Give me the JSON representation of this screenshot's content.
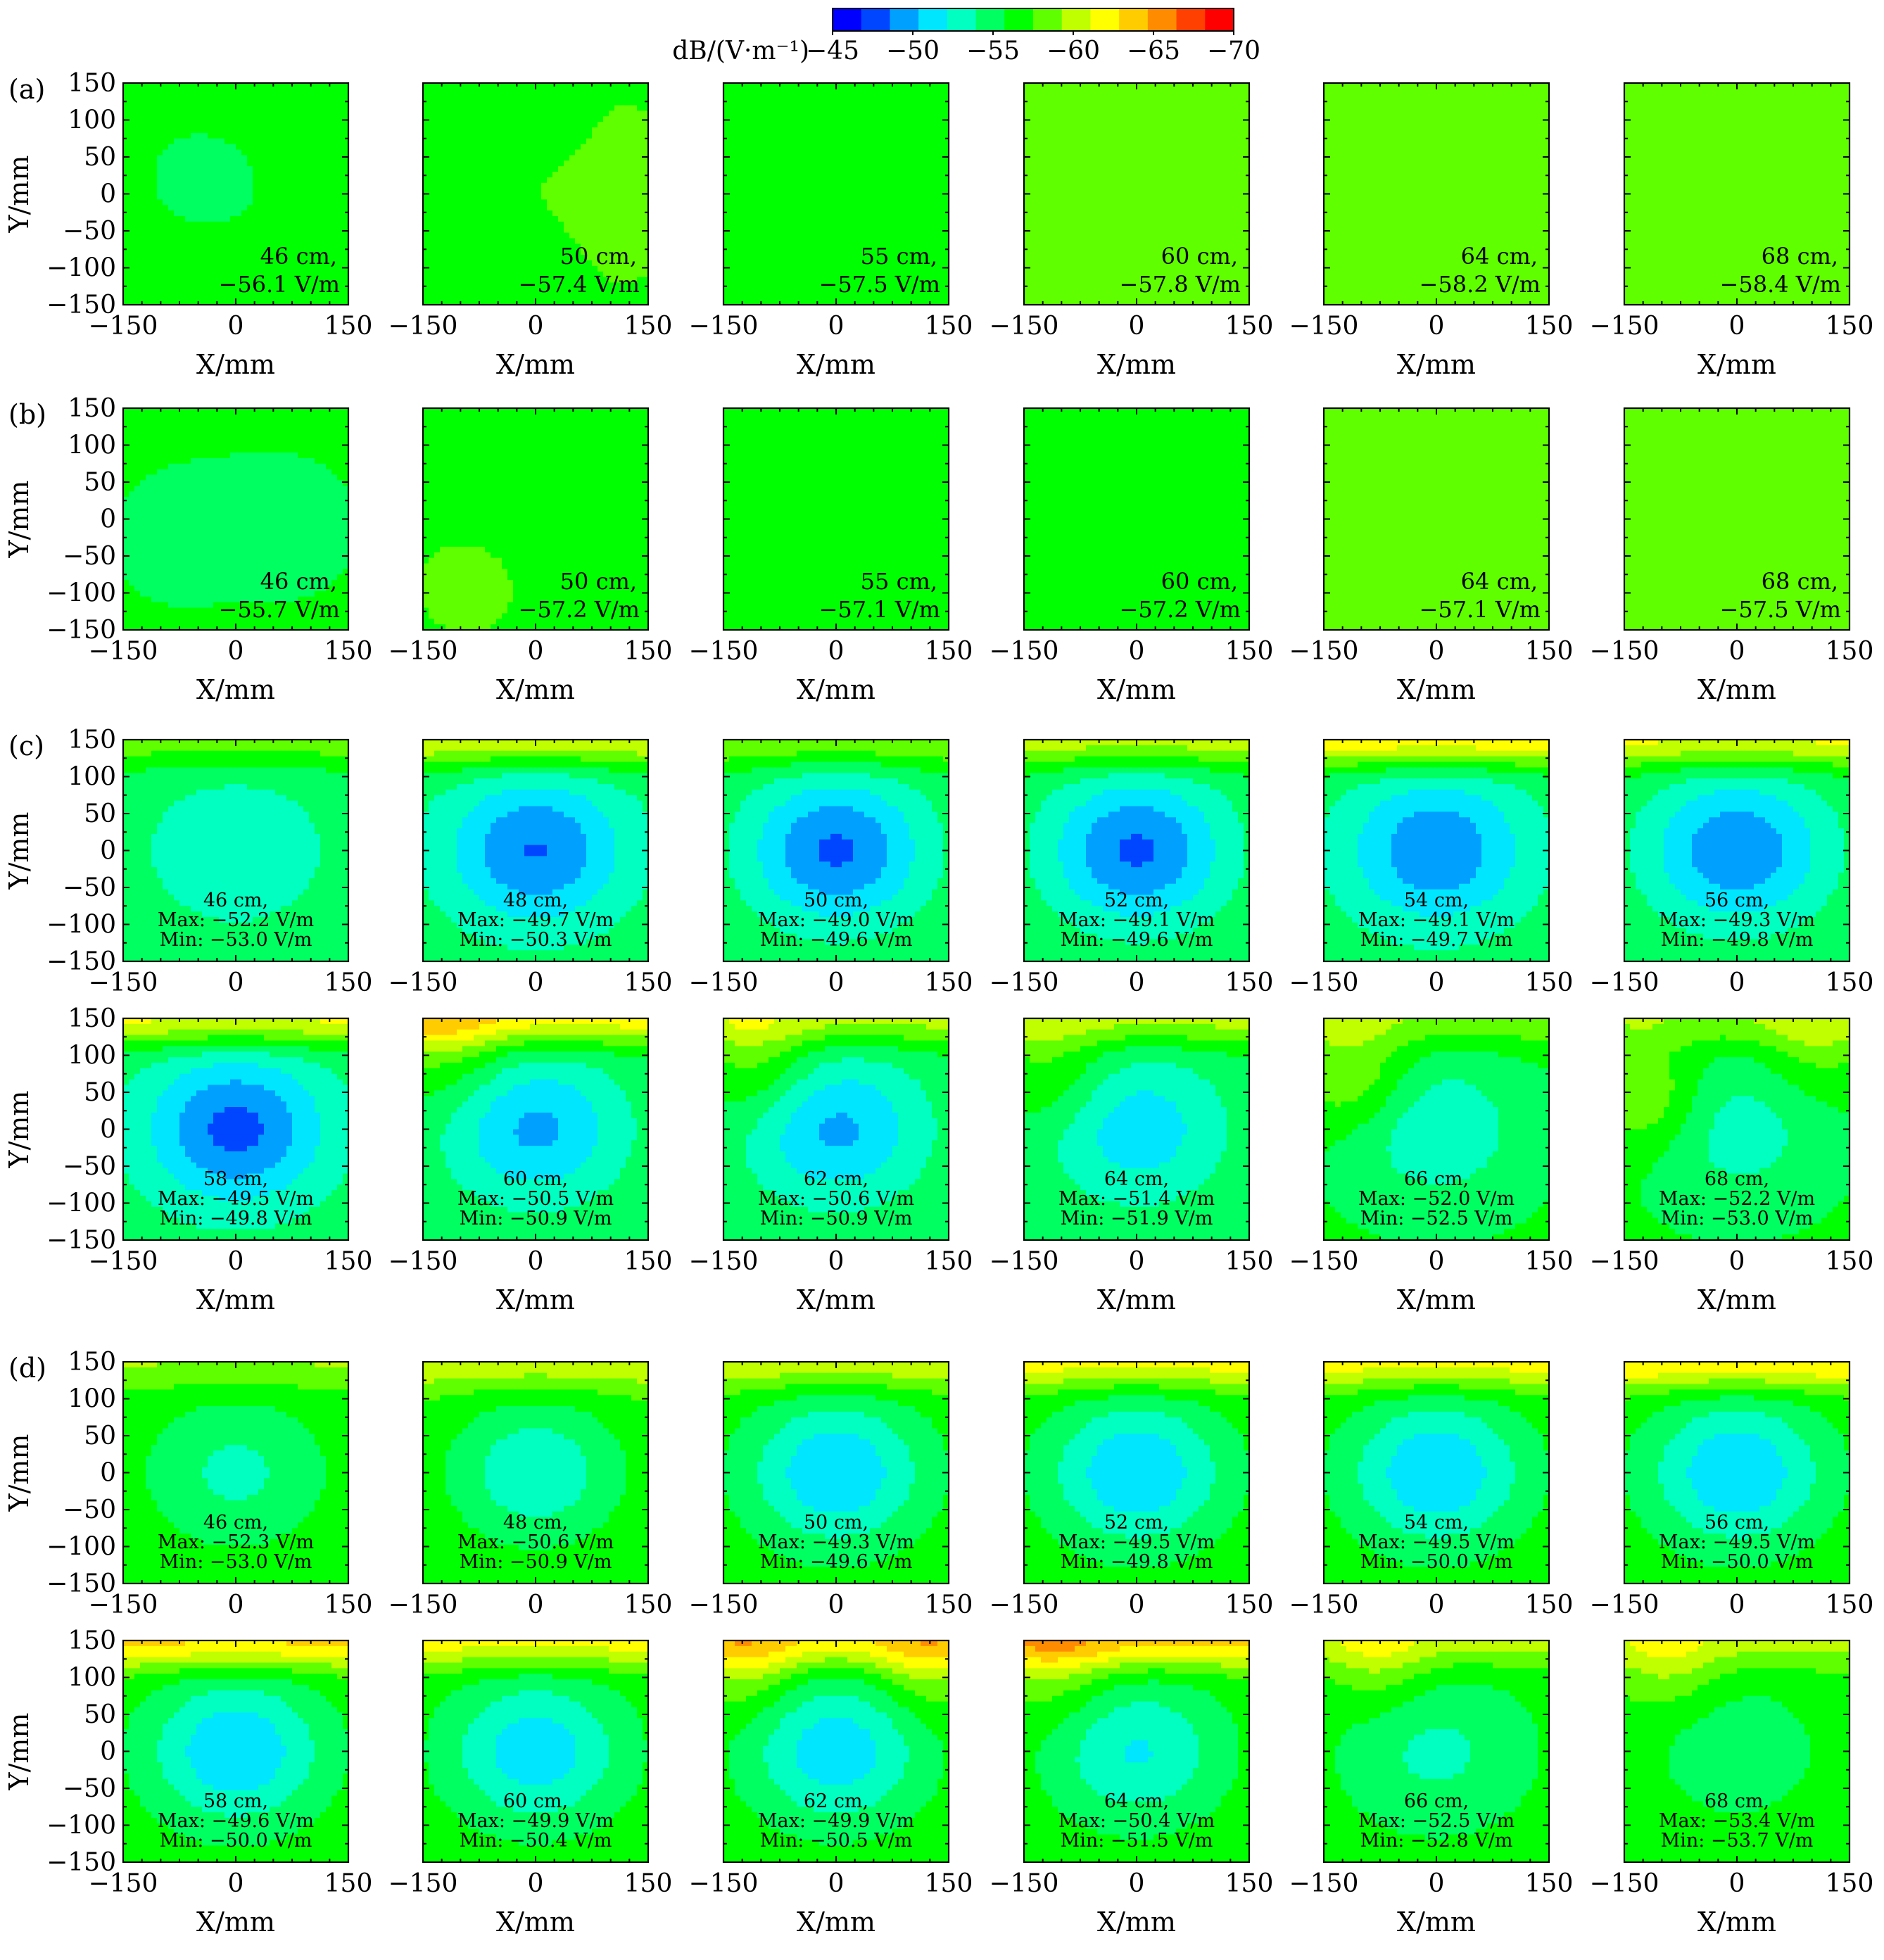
{
  "colorbar": {
    "unit_label": "dB/(V·m⁻¹)",
    "ticks": [
      "−45",
      "−50",
      "−55",
      "−60",
      "−65",
      "−70"
    ],
    "tick_values": [
      -45,
      -50,
      -55,
      -60,
      -65,
      -70
    ],
    "range": [
      -70,
      -45
    ],
    "colors": [
      "#0000ff",
      "#0045ff",
      "#00a0ff",
      "#00e6ff",
      "#00ffc0",
      "#00ff60",
      "#00ff00",
      "#60ff00",
      "#c0ff00",
      "#ffff00",
      "#ffcc00",
      "#ff8c00",
      "#ff4000",
      "#ff0000"
    ]
  },
  "axes": {
    "x_label": "X/mm",
    "y_label": "Y/mm",
    "x_ticks": [
      "−150",
      "0",
      "150"
    ],
    "y_ticks": [
      "150",
      "100",
      "50",
      "0",
      "−50",
      "−100",
      "−150"
    ],
    "xlim": [
      -150,
      150
    ],
    "ylim": [
      -150,
      150
    ]
  },
  "chart_data": {
    "type": "heatmap",
    "x_range_mm": [
      -150,
      150
    ],
    "y_range_mm": [
      -150,
      150
    ],
    "groups": [
      {
        "label": "(a)",
        "rows": [
          [
            {
              "dist": "46 cm,",
              "lines": [
                "−56.1 V/m"
              ],
              "base": -56.1,
              "peak": 0.3,
              "edge": 0,
              "dips": [],
              "bright": [
                [
                  -0.4,
                  0.2,
                  0.25,
                  0.4
                ]
              ]
            },
            {
              "dist": "50 cm,",
              "lines": [
                "−57.4 V/m"
              ],
              "base": -57.4,
              "peak": 0.4,
              "edge": 0,
              "dips": [
                [
                  0.55,
                  0.0,
                  0.3,
                  1.5
                ]
              ],
              "bright": [
                [
                  0.1,
                  0.6,
                  0.12,
                  1.2
                ],
                [
                  0.0,
                  -0.55,
                  0.15,
                  1.0
                ],
                [
                  -0.9,
                  0.2,
                  0.15,
                  1.0
                ]
              ]
            },
            {
              "dist": "55 cm,",
              "lines": [
                "−57.5 V/m"
              ],
              "base": -57.5,
              "peak": 0.2,
              "edge": 0,
              "dips": [],
              "bright": []
            },
            {
              "dist": "60 cm,",
              "lines": [
                "−57.8 V/m"
              ],
              "base": -57.8,
              "peak": 0.1,
              "edge": 0,
              "dips": [],
              "bright": []
            },
            {
              "dist": "64 cm,",
              "lines": [
                "−58.2 V/m"
              ],
              "base": -58.2,
              "peak": 0.1,
              "edge": 0,
              "dips": [],
              "bright": []
            },
            {
              "dist": "68 cm,",
              "lines": [
                "−58.4 V/m"
              ],
              "base": -58.4,
              "peak": 0.1,
              "edge": 0,
              "dips": [],
              "bright": []
            }
          ]
        ]
      },
      {
        "label": "(b)",
        "rows": [
          [
            {
              "dist": "46 cm,",
              "lines": [
                "−55.7 V/m"
              ],
              "base": -55.9,
              "peak": 0.3,
              "edge": 0,
              "dips": [],
              "bright": [
                [
                  -0.5,
                  -0.2,
                  0.2,
                  0.8
                ],
                [
                  0.5,
                  -0.1,
                  0.25,
                  0.6
                ]
              ]
            },
            {
              "dist": "50 cm,",
              "lines": [
                "−57.2 V/m"
              ],
              "base": -57.2,
              "peak": 0.2,
              "edge": 0,
              "dips": [
                [
                  -0.6,
                  -0.6,
                  0.2,
                  0.8
                ]
              ],
              "bright": [
                [
                  0.3,
                  0.6,
                  0.2,
                  0.6
                ]
              ]
            },
            {
              "dist": "55 cm,",
              "lines": [
                "−57.1 V/m"
              ],
              "base": -57.1,
              "peak": 0.2,
              "edge": 0,
              "dips": [],
              "bright": [
                [
                  -0.4,
                  -0.3,
                  0.2,
                  0.7
                ],
                [
                  0.3,
                  0.2,
                  0.2,
                  0.6
                ]
              ]
            },
            {
              "dist": "60 cm,",
              "lines": [
                "−57.2 V/m"
              ],
              "base": -57.4,
              "peak": 0.2,
              "edge": 0,
              "dips": [],
              "bright": [
                [
                  -0.2,
                  0.0,
                  0.15,
                  0.6
                ]
              ]
            },
            {
              "dist": "64 cm,",
              "lines": [
                "−57.1 V/m"
              ],
              "base": -57.6,
              "peak": 0.1,
              "edge": 0,
              "dips": [],
              "bright": []
            },
            {
              "dist": "68 cm,",
              "lines": [
                "−57.5 V/m"
              ],
              "base": -57.6,
              "peak": 0.1,
              "edge": 0,
              "dips": [],
              "bright": []
            }
          ]
        ]
      },
      {
        "label": "(c)",
        "rows": [
          [
            {
              "dist": "46 cm,",
              "lines": [
                "Max: −52.2 V/m",
                "Min: −53.0 V/m"
              ],
              "base": -55.0,
              "peak": 2.6,
              "edge": 3.5,
              "dips": [],
              "bright": []
            },
            {
              "dist": "48 cm,",
              "lines": [
                "Max: −49.7 V/m",
                "Min: −50.3 V/m"
              ],
              "base": -55.0,
              "peak": 6.5,
              "edge": 6.0,
              "dips": [],
              "bright": []
            },
            {
              "dist": "50 cm,",
              "lines": [
                "Max: −49.0 V/m",
                "Min: −49.6 V/m"
              ],
              "base": -55.5,
              "peak": 7.2,
              "edge": 4.0,
              "dips": [],
              "bright": []
            },
            {
              "dist": "52 cm,",
              "lines": [
                "Max: −49.1 V/m",
                "Min: −49.6 V/m"
              ],
              "base": -55.5,
              "peak": 7.2,
              "edge": 5.0,
              "dips": [],
              "bright": []
            },
            {
              "dist": "54 cm,",
              "lines": [
                "Max: −49.1 V/m",
                "Min: −49.7 V/m"
              ],
              "base": -55.0,
              "peak": 6.2,
              "edge": 7.5,
              "dips": [],
              "bright": []
            },
            {
              "dist": "56 cm,",
              "lines": [
                "Max: −49.3 V/m",
                "Min: −49.8 V/m"
              ],
              "base": -55.5,
              "peak": 6.8,
              "edge": 6.0,
              "dips": [],
              "bright": []
            }
          ],
          [
            {
              "dist": "58 cm,",
              "lines": [
                "Max: −49.5 V/m",
                "Min: −49.8 V/m"
              ],
              "base": -55.0,
              "peak": 7.0,
              "edge": 6.5,
              "dips": [],
              "bright": []
            },
            {
              "dist": "60 cm,",
              "lines": [
                "Max: −50.5 V/m",
                "Min: −50.9 V/m"
              ],
              "base": -55.5,
              "peak": 5.5,
              "edge": 6.5,
              "dips": [
                [
                  -0.8,
                  0.8,
                  0.3,
                  3.0
                ]
              ],
              "bright": []
            },
            {
              "dist": "62 cm,",
              "lines": [
                "Max: −50.6 V/m",
                "Min: −50.9 V/m"
              ],
              "base": -55.5,
              "peak": 5.5,
              "edge": 4.5,
              "dips": [
                [
                  -0.7,
                  0.6,
                  0.25,
                  3.0
                ]
              ],
              "bright": []
            },
            {
              "dist": "64 cm,",
              "lines": [
                "Max: −51.4 V/m",
                "Min: −51.9 V/m"
              ],
              "base": -55.5,
              "peak": 4.5,
              "edge": 4.5,
              "dips": [
                [
                  -0.75,
                  0.5,
                  0.25,
                  2.5
                ]
              ],
              "bright": []
            },
            {
              "dist": "66 cm,",
              "lines": [
                "Max: −52.0 V/m",
                "Min: −52.5 V/m"
              ],
              "base": -56.0,
              "peak": 3.5,
              "edge": 3.0,
              "dips": [
                [
                  -0.75,
                  0.5,
                  0.25,
                  3.5
                ]
              ],
              "bright": []
            },
            {
              "dist": "68 cm,",
              "lines": [
                "Max: −52.2 V/m",
                "Min: −53.0 V/m"
              ],
              "base": -56.0,
              "peak": 3.0,
              "edge": 3.0,
              "dips": [
                [
                  -0.8,
                  0.3,
                  0.25,
                  3.5
                ],
                [
                  0.7,
                  0.8,
                  0.25,
                  2.5
                ]
              ],
              "bright": []
            }
          ]
        ]
      },
      {
        "label": "(d)",
        "rows": [
          [
            {
              "dist": "46 cm,",
              "lines": [
                "Max: −52.3 V/m",
                "Min: −53.0 V/m"
              ],
              "base": -57.0,
              "peak": 3.5,
              "edge": 2.5,
              "dips": [],
              "bright": []
            },
            {
              "dist": "48 cm,",
              "lines": [
                "Max: −50.6 V/m",
                "Min: −50.9 V/m"
              ],
              "base": -57.5,
              "peak": 5.0,
              "edge": 3.5,
              "dips": [],
              "bright": []
            },
            {
              "dist": "50 cm,",
              "lines": [
                "Max: −49.3 V/m",
                "Min: −49.6 V/m"
              ],
              "base": -57.0,
              "peak": 6.5,
              "edge": 4.0,
              "dips": [],
              "bright": []
            },
            {
              "dist": "52 cm,",
              "lines": [
                "Max: −49.5 V/m",
                "Min: −49.8 V/m"
              ],
              "base": -57.0,
              "peak": 6.5,
              "edge": 5.0,
              "dips": [],
              "bright": []
            },
            {
              "dist": "54 cm,",
              "lines": [
                "Max: −49.5 V/m",
                "Min: −50.0 V/m"
              ],
              "base": -57.0,
              "peak": 6.5,
              "edge": 5.0,
              "dips": [],
              "bright": []
            },
            {
              "dist": "56 cm,",
              "lines": [
                "Max: −49.5 V/m",
                "Min: −50.0 V/m"
              ],
              "base": -57.0,
              "peak": 6.5,
              "edge": 6.0,
              "dips": [],
              "bright": []
            }
          ],
          [
            {
              "dist": "58 cm,",
              "lines": [
                "Max: −49.6 V/m",
                "Min: −50.0 V/m"
              ],
              "base": -57.0,
              "peak": 6.5,
              "edge": 6.5,
              "dips": [],
              "bright": []
            },
            {
              "dist": "60 cm,",
              "lines": [
                "Max: −49.9 V/m",
                "Min: −50.4 V/m"
              ],
              "base": -57.0,
              "peak": 6.0,
              "edge": 5.0,
              "dips": [],
              "bright": []
            },
            {
              "dist": "62 cm,",
              "lines": [
                "Max: −49.9 V/m",
                "Min: −50.5 V/m"
              ],
              "base": -57.0,
              "peak": 6.0,
              "edge": 5.5,
              "dips": [
                [
                  -0.8,
                  0.8,
                  0.2,
                  3.0
                ],
                [
                  0.8,
                  0.8,
                  0.2,
                  3.0
                ]
              ],
              "bright": []
            },
            {
              "dist": "64 cm,",
              "lines": [
                "Max: −50.4 V/m",
                "Min: −51.5 V/m"
              ],
              "base": -57.0,
              "peak": 5.0,
              "edge": 6.5,
              "dips": [
                [
                  -0.7,
                  0.8,
                  0.25,
                  2.5
                ]
              ],
              "bright": []
            },
            {
              "dist": "66 cm,",
              "lines": [
                "Max: −52.5 V/m",
                "Min: −52.8 V/m"
              ],
              "base": -56.5,
              "peak": 3.0,
              "edge": 3.5,
              "dips": [
                [
                  -0.5,
                  0.8,
                  0.2,
                  2.5
                ]
              ],
              "bright": []
            },
            {
              "dist": "68 cm,",
              "lines": [
                "Max: −53.4 V/m",
                "Min: −53.7 V/m"
              ],
              "base": -57.0,
              "peak": 2.5,
              "edge": 3.0,
              "dips": [
                [
                  -0.6,
                  0.8,
                  0.2,
                  2.5
                ]
              ],
              "bright": []
            }
          ]
        ]
      }
    ]
  }
}
